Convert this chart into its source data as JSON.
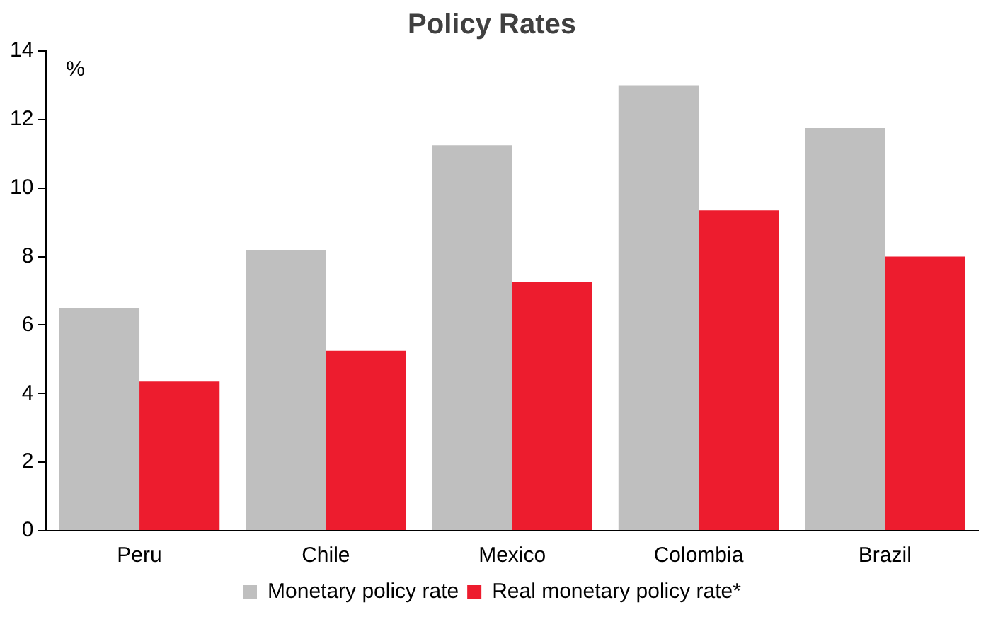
{
  "chart_data": {
    "type": "bar",
    "title": "Policy Rates",
    "ylabel": "%",
    "categories": [
      "Peru",
      "Chile",
      "Mexico",
      "Colombia",
      "Brazil"
    ],
    "series": [
      {
        "name": "Monetary policy rate",
        "color": "#bfbfbf",
        "values": [
          6.5,
          8.2,
          11.25,
          13.0,
          11.75
        ]
      },
      {
        "name": "Real monetary policy rate*",
        "color": "#ed1c2e",
        "values": [
          4.35,
          5.25,
          7.25,
          9.35,
          8.0
        ]
      }
    ],
    "ylim": [
      0,
      14
    ],
    "yticks": [
      0,
      2,
      4,
      6,
      8,
      10,
      12,
      14
    ],
    "grid": false,
    "legend": "bottom"
  }
}
